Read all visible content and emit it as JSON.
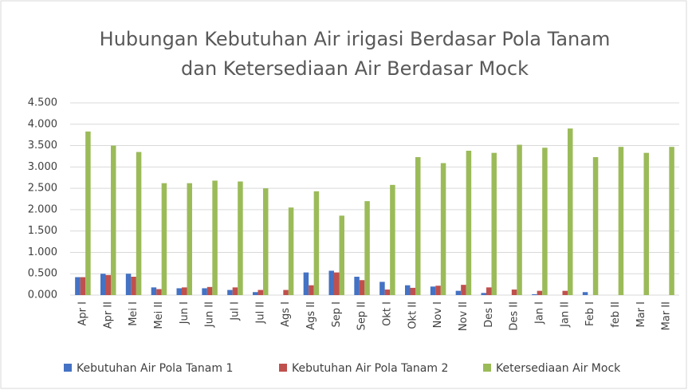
{
  "chart_data": {
    "type": "bar",
    "title": [
      "Hubungan Kebutuhan Air irigasi Berdasar Pola Tanam",
      "dan Ketersediaan Air Berdasar Mock"
    ],
    "categories": [
      "Apr I",
      "Apr II",
      "Mei I",
      "Mei II",
      "Jun I",
      "Jun II",
      "Jul I",
      "Jul II",
      "Ags I",
      "Ags II",
      "Sep I",
      "Sep II",
      "Okt I",
      "Okt II",
      "Nov I",
      "Nov II",
      "Des I",
      "Des II",
      "Jan I",
      "Jan II",
      "Feb I",
      "feb II",
      "Mar I",
      "Mar II"
    ],
    "series": [
      {
        "name": "Kebutuhan Air Pola Tanam 1",
        "color": "#4472c4",
        "values": [
          0.42,
          0.5,
          0.5,
          0.18,
          0.16,
          0.16,
          0.12,
          0.07,
          0,
          0.53,
          0.57,
          0.43,
          0.31,
          0.23,
          0.2,
          0.1,
          0.05,
          0,
          0.02,
          0,
          0.07,
          0,
          0,
          0
        ]
      },
      {
        "name": "Kebutuhan Air Pola Tanam 2",
        "color": "#c0504d",
        "values": [
          0.42,
          0.47,
          0.43,
          0.14,
          0.18,
          0.19,
          0.18,
          0.12,
          0.12,
          0.23,
          0.53,
          0.35,
          0.13,
          0.17,
          0.22,
          0.24,
          0.18,
          0.13,
          0.1,
          0.1,
          0,
          0,
          0,
          0
        ]
      },
      {
        "name": "Ketersediaan Air Mock",
        "color": "#9bbb59",
        "values": [
          3.83,
          3.5,
          3.35,
          2.62,
          2.62,
          2.68,
          2.66,
          2.5,
          2.05,
          2.43,
          1.86,
          2.2,
          2.58,
          3.23,
          3.09,
          3.38,
          3.33,
          3.52,
          3.45,
          3.9,
          3.23,
          3.47,
          3.33,
          3.47
        ]
      }
    ],
    "ylim": [
      0,
      4.5
    ],
    "yticks": [
      {
        "value": 0,
        "label": "0.000"
      },
      {
        "value": 0.5,
        "label": "0.500"
      },
      {
        "value": 1,
        "label": "1.000"
      },
      {
        "value": 1.5,
        "label": "1.500"
      },
      {
        "value": 2,
        "label": "2.000"
      },
      {
        "value": 2.5,
        "label": "2.500"
      },
      {
        "value": 3,
        "label": "3.000"
      },
      {
        "value": 3.5,
        "label": "3.500"
      },
      {
        "value": 4,
        "label": "4.000"
      },
      {
        "value": 4.5,
        "label": "4.500"
      }
    ],
    "grid": true,
    "legend": "bottom"
  }
}
